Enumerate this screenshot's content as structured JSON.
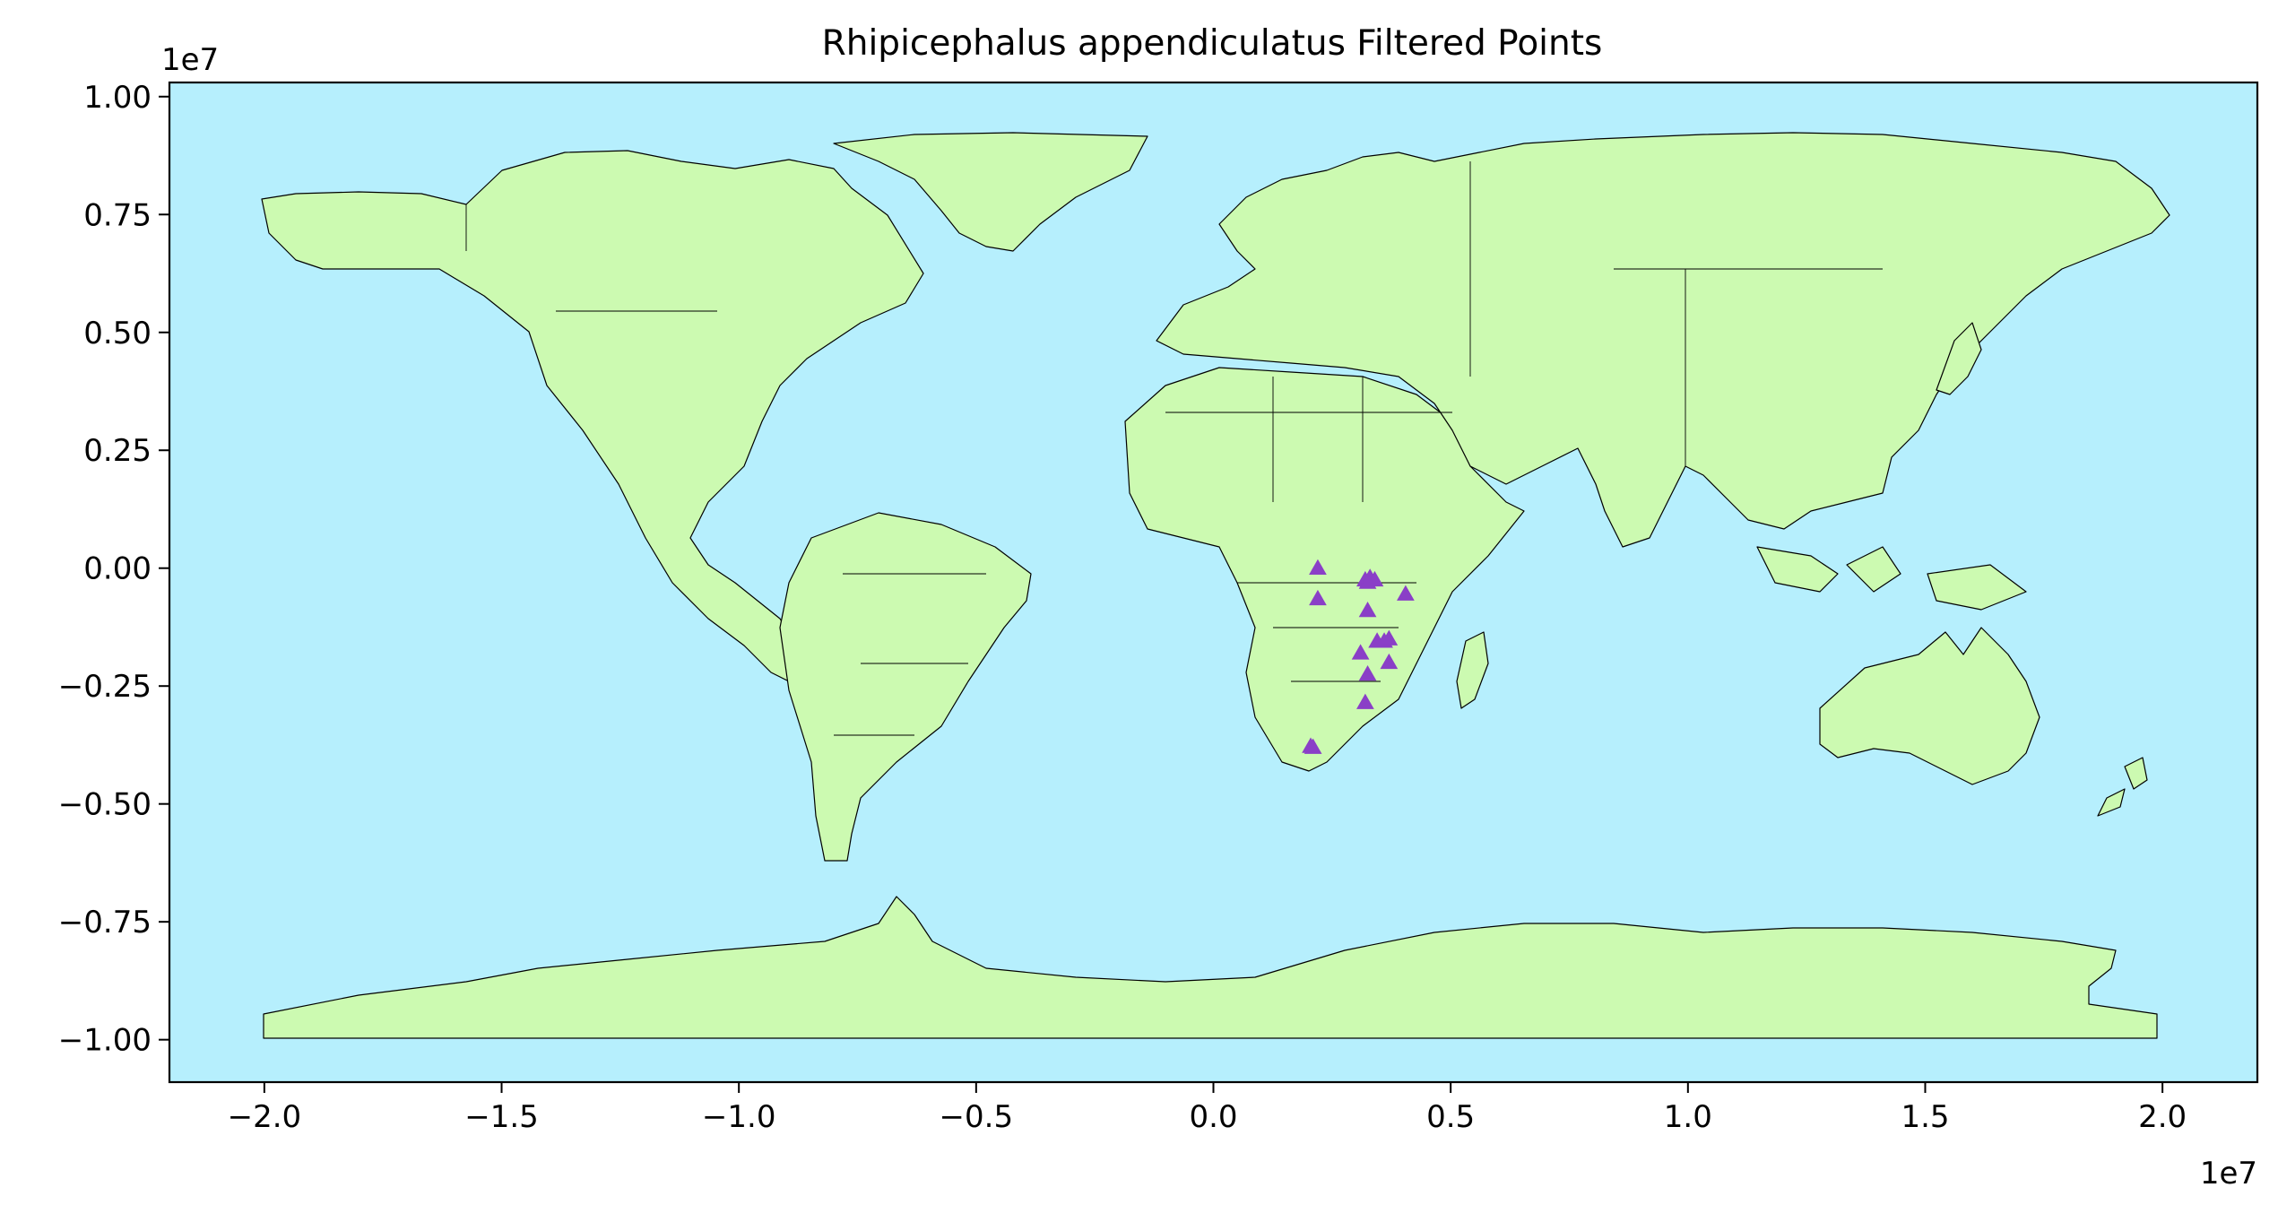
{
  "chart_data": {
    "type": "scatter",
    "title": "Rhipicephalus appendiculatus Filtered Points",
    "xlabel": "",
    "ylabel": "",
    "x_offset_label": "1e7",
    "y_offset_label": "1e7",
    "xlim": [
      -2.2,
      2.2
    ],
    "ylim": [
      -1.09,
      1.03
    ],
    "x_ticks": [
      -2.0,
      -1.5,
      -1.0,
      -0.5,
      0.0,
      0.5,
      1.0,
      1.5,
      2.0
    ],
    "x_tick_labels": [
      "−2.0",
      "−1.5",
      "−1.0",
      "−0.5",
      "0.0",
      "0.5",
      "1.0",
      "1.5",
      "2.0"
    ],
    "y_ticks": [
      1.0,
      0.75,
      0.5,
      0.25,
      0.0,
      -0.25,
      -0.5,
      -0.75,
      -1.0
    ],
    "y_tick_labels": [
      "1.00",
      "0.75",
      "0.50",
      "0.25",
      "0.00",
      "−0.25",
      "−0.50",
      "−0.75",
      "−1.00"
    ],
    "grid": false,
    "background_color": "#b6effd",
    "land_color": "#ccfab1",
    "marker": "triangle",
    "marker_color": "#8a3fc7",
    "points": [
      {
        "x": 0.22,
        "y": 0.0
      },
      {
        "x": 0.22,
        "y": -0.065
      },
      {
        "x": 0.32,
        "y": -0.025
      },
      {
        "x": 0.33,
        "y": -0.02
      },
      {
        "x": 0.34,
        "y": -0.025
      },
      {
        "x": 0.325,
        "y": -0.03
      },
      {
        "x": 0.405,
        "y": -0.055
      },
      {
        "x": 0.325,
        "y": -0.09
      },
      {
        "x": 0.345,
        "y": -0.155
      },
      {
        "x": 0.36,
        "y": -0.155
      },
      {
        "x": 0.37,
        "y": -0.15
      },
      {
        "x": 0.31,
        "y": -0.18
      },
      {
        "x": 0.37,
        "y": -0.2
      },
      {
        "x": 0.325,
        "y": -0.225
      },
      {
        "x": 0.32,
        "y": -0.285
      },
      {
        "x": 0.21,
        "y": -0.38
      },
      {
        "x": 0.205,
        "y": -0.378
      }
    ]
  }
}
